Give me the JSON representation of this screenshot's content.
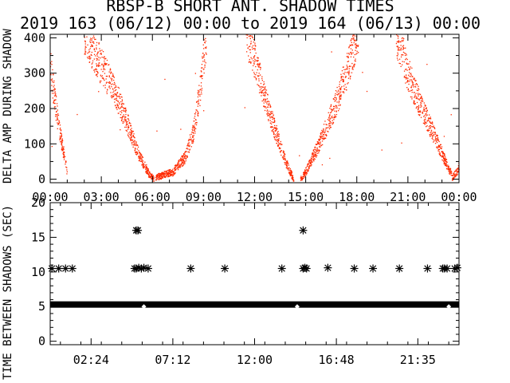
{
  "colors": {
    "background": "#ffffff",
    "axis": "#000000",
    "top_points": "#ff2a00",
    "bottom_points": "#000000"
  },
  "chart_data": [
    {
      "type": "scatter",
      "title": "RBSP-B SHORT ANT. SHADOW TIMES",
      "subtitle": "2019 163 (06/12) 00:00 to 2019 164 (06/13) 00:00",
      "ylabel": "DELTA AMP DURING SHADOW",
      "xlim_hours": [
        0,
        24
      ],
      "ylim": [
        -10,
        410
      ],
      "yticks": [
        "0",
        "100",
        "200",
        "300",
        "400"
      ],
      "xtick_labels": [
        "00:00",
        "03:00",
        "06:00",
        "09:00",
        "12:00",
        "15:00",
        "18:00",
        "21:00",
        "00:00"
      ],
      "point_color": "#ff2a00",
      "envelopes": [
        {
          "t": [
            0.0,
            0.5,
            1.0
          ],
          "y": [
            320,
            150,
            20
          ]
        },
        {
          "t": [
            2.0,
            3.0,
            3.8,
            4.6,
            5.2,
            5.8,
            6.1
          ],
          "y": [
            420,
            320,
            250,
            150,
            70,
            15,
            0
          ]
        },
        {
          "t": [
            6.2,
            7.2,
            7.9,
            8.4,
            8.8,
            9.2
          ],
          "y": [
            5,
            20,
            60,
            130,
            250,
            420
          ]
        },
        {
          "t": [
            11.5,
            12.2,
            12.8,
            13.4,
            13.9,
            14.3
          ],
          "y": [
            420,
            300,
            200,
            110,
            40,
            0
          ]
        },
        {
          "t": [
            14.7,
            15.0,
            15.8,
            16.6,
            17.4,
            18.1
          ],
          "y": [
            0,
            20,
            100,
            190,
            300,
            420
          ]
        },
        {
          "t": [
            20.3,
            21.0,
            21.8,
            22.6,
            23.2,
            23.6
          ],
          "y": [
            420,
            300,
            200,
            120,
            50,
            10
          ]
        },
        {
          "t": [
            23.6,
            23.9,
            24.0
          ],
          "y": [
            5,
            20,
            40
          ]
        }
      ]
    },
    {
      "type": "scatter",
      "ylabel": "TIME BETWEEN SHADOWS (SEC)",
      "xlim_hours": [
        0,
        24
      ],
      "ylim": [
        -0.5,
        20
      ],
      "yticks": [
        "0",
        "5",
        "10",
        "15",
        "20"
      ],
      "xtick_labels": [
        "02:24",
        "07:12",
        "12:00",
        "16:48",
        "21:35"
      ],
      "xtick_hours": [
        2.4,
        7.2,
        12.0,
        16.8,
        21.583
      ],
      "marker": "asterisk",
      "point_color": "#000000",
      "baseline": {
        "y": 5.3,
        "t_start": 0,
        "t_end": 24
      },
      "points": {
        "t": [
          0.1,
          0.5,
          0.9,
          1.3,
          4.95,
          5.05,
          5.2,
          5.35,
          5.5,
          5.75,
          8.25,
          10.25,
          13.6,
          14.85,
          14.95,
          15.05,
          16.3,
          17.85,
          18.95,
          20.5,
          22.15,
          23.05,
          23.15,
          23.3,
          23.75,
          23.9,
          5.05,
          5.15,
          14.85,
          5.5,
          14.5,
          23.4
        ],
        "y": [
          10.5,
          10.5,
          10.5,
          10.5,
          10.5,
          10.5,
          10.6,
          10.5,
          10.6,
          10.5,
          10.5,
          10.5,
          10.5,
          10.5,
          10.6,
          10.5,
          10.6,
          10.5,
          10.5,
          10.5,
          10.5,
          10.5,
          10.5,
          10.5,
          10.5,
          10.6,
          16.0,
          16.0,
          16.0,
          5.0,
          5.0,
          5.0
        ]
      }
    }
  ]
}
